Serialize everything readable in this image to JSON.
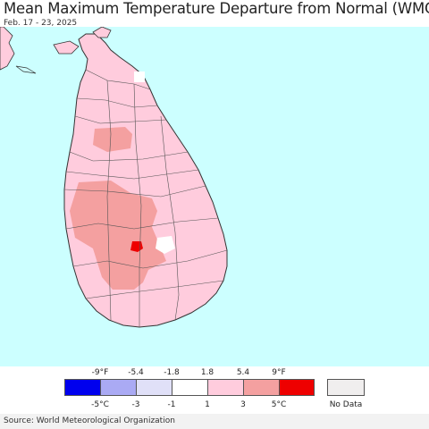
{
  "header": {
    "title": "Mean Maximum Temperature Departure from Normal (WMO)",
    "date_range": "Feb. 17 - 23, 2025"
  },
  "map": {
    "region": "Sri Lanka",
    "colors": {
      "ocean": "#ccffff",
      "land_base": "#ffccdd",
      "warm_3_5": "#f4a0a0",
      "hot_5_plus": "#ee0000",
      "near_normal": "#ffffff",
      "border": "#333333"
    }
  },
  "legend": {
    "fahrenheit_labels": [
      "-9°F",
      "-5.4",
      "-1.8",
      "1.8",
      "5.4",
      "9°F"
    ],
    "celsius_labels": [
      "-5°C",
      "-3",
      "-1",
      "1",
      "3",
      "5°C"
    ],
    "bins": [
      {
        "color": "#0000ee"
      },
      {
        "color": "#aaaaf4"
      },
      {
        "color": "#e0e0f8"
      },
      {
        "color": "#ffffff"
      },
      {
        "color": "#ffccdd"
      },
      {
        "color": "#f4a0a0"
      },
      {
        "color": "#ee0000"
      }
    ],
    "no_data": {
      "label": "No Data",
      "color": "#f0eeee"
    }
  },
  "footer": {
    "source": "Source: World Meteorological Organization"
  }
}
